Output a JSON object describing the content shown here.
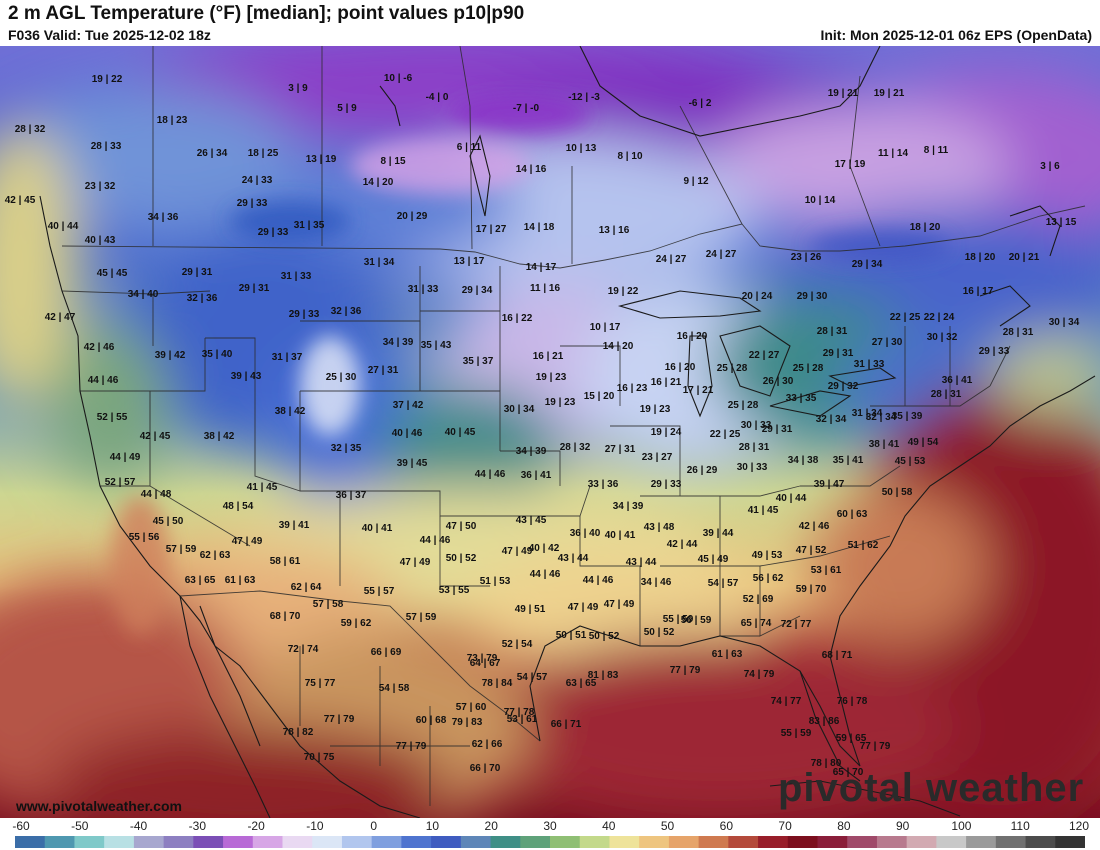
{
  "header": {
    "title": "2 m AGL Temperature (°F) [median]; point values p10|p90",
    "valid": "F036 Valid: Tue 2025-12-02 18z",
    "init": "Init: Mon 2025-12-01 06z EPS (OpenData)"
  },
  "footer": {
    "site_url": "www.pivotalweather.com",
    "brand": "pivotal weather"
  },
  "colorbar": {
    "ticks": [
      "-60",
      "-50",
      "-40",
      "-30",
      "-20",
      "-10",
      "0",
      "10",
      "20",
      "30",
      "40",
      "50",
      "60",
      "70",
      "80",
      "90",
      "100",
      "110",
      "120"
    ],
    "colors": [
      "#3b6ea8",
      "#4f98b0",
      "#7fc9c9",
      "#b8e0e4",
      "#a7a7cf",
      "#8d7fc1",
      "#7b4fb6",
      "#b86ad6",
      "#d7a6e6",
      "#e9d9f2",
      "#dbe6f6",
      "#b1c6ee",
      "#7f9fdf",
      "#4f74cf",
      "#3f5cc0",
      "#5e86b8",
      "#3f8f86",
      "#5fa27a",
      "#8fbf74",
      "#c3d98a",
      "#eee39a",
      "#eec57f",
      "#e6a46a",
      "#cf7a50",
      "#b44a3b",
      "#981e2a",
      "#7c0f1e",
      "#8a1e3a",
      "#a04a6a",
      "#b87a8e",
      "#d2aab2",
      "#c8c8c8",
      "#9a9a9a",
      "#707070",
      "#4c4c4c",
      "#333333"
    ]
  },
  "map": {
    "points": [
      {
        "t": "19|22"
      },
      {
        "t": "28|32"
      },
      {
        "t": "18|23"
      },
      {
        "t": "3|9"
      },
      {
        "t": "10|-6"
      },
      {
        "t": "5|9"
      },
      {
        "t": "-4|0"
      },
      {
        "t": "-7|-0"
      },
      {
        "t": "-12|-3"
      },
      {
        "t": "-6|2"
      },
      {
        "t": "19|21"
      },
      {
        "t": "19|21"
      },
      {
        "t": "28|33"
      },
      {
        "t": "26|34"
      },
      {
        "t": "18|25"
      },
      {
        "t": "13|19"
      },
      {
        "t": "8|15"
      },
      {
        "t": "6|11"
      },
      {
        "t": "10|13"
      },
      {
        "t": "8|10"
      },
      {
        "t": "17|19"
      },
      {
        "t": "11|14"
      },
      {
        "t": "8|11"
      },
      {
        "t": "3|6"
      },
      {
        "t": "23|32"
      },
      {
        "t": "24|33"
      },
      {
        "t": "14|20"
      },
      {
        "t": "14|16"
      },
      {
        "t": "9|12"
      },
      {
        "t": "42|45"
      },
      {
        "t": "29|33"
      },
      {
        "t": "10|14"
      },
      {
        "t": "34|36"
      },
      {
        "t": "20|29"
      },
      {
        "t": "40|44"
      },
      {
        "t": "31|35"
      },
      {
        "t": "17|27"
      },
      {
        "t": "14|18"
      },
      {
        "t": "13|16"
      },
      {
        "t": "18|20"
      },
      {
        "t": "13|15"
      },
      {
        "t": "29|33"
      },
      {
        "t": "40|43"
      },
      {
        "t": "24|27"
      },
      {
        "t": "23|26"
      },
      {
        "t": "29|34"
      },
      {
        "t": "13|17"
      },
      {
        "t": "14|17"
      },
      {
        "t": "24|27"
      },
      {
        "t": "18|20"
      },
      {
        "t": "20|21"
      },
      {
        "t": "29|31"
      },
      {
        "t": "31|34"
      },
      {
        "t": "31|33"
      },
      {
        "t": "45|45"
      },
      {
        "t": "29|31"
      },
      {
        "t": "31|33"
      },
      {
        "t": "29|34"
      },
      {
        "t": "11|16"
      },
      {
        "t": "19|22"
      },
      {
        "t": "20|24"
      },
      {
        "t": "29|30"
      },
      {
        "t": "16|17"
      },
      {
        "t": "34|40"
      },
      {
        "t": "32|36"
      },
      {
        "t": "29|33"
      },
      {
        "t": "32|36"
      },
      {
        "t": "16|22"
      },
      {
        "t": "10|17"
      },
      {
        "t": "22|25"
      },
      {
        "t": "22|24"
      },
      {
        "t": "42|47"
      },
      {
        "t": "28|31"
      },
      {
        "t": "28|31"
      },
      {
        "t": "30|34"
      },
      {
        "t": "34|39"
      },
      {
        "t": "35|43"
      },
      {
        "t": "16|20"
      },
      {
        "t": "14|20"
      },
      {
        "t": "30|32"
      },
      {
        "t": "27|30"
      },
      {
        "t": "42|46"
      },
      {
        "t": "39|42"
      },
      {
        "t": "35|40"
      },
      {
        "t": "31|37"
      },
      {
        "t": "16|21"
      },
      {
        "t": "22|27"
      },
      {
        "t": "29|31"
      },
      {
        "t": "29|33"
      },
      {
        "t": "35|37"
      },
      {
        "t": "25|30"
      },
      {
        "t": "27|31"
      },
      {
        "t": "16|20"
      },
      {
        "t": "25|28"
      },
      {
        "t": "25|28"
      },
      {
        "t": "31|33"
      },
      {
        "t": "44|46"
      },
      {
        "t": "39|43"
      },
      {
        "t": "19|23"
      },
      {
        "t": "16|23"
      },
      {
        "t": "16|21"
      },
      {
        "t": "26|30"
      },
      {
        "t": "29|32"
      },
      {
        "t": "36|41"
      },
      {
        "t": "15|20"
      },
      {
        "t": "17|21"
      },
      {
        "t": "28|31"
      },
      {
        "t": "38|42"
      },
      {
        "t": "37|42"
      },
      {
        "t": "19|23"
      },
      {
        "t": "30|34"
      },
      {
        "t": "19|23"
      },
      {
        "t": "25|28"
      },
      {
        "t": "33|35"
      },
      {
        "t": "32|34"
      },
      {
        "t": "30|33"
      },
      {
        "t": "52|55"
      },
      {
        "t": "31|34"
      },
      {
        "t": "35|39"
      },
      {
        "t": "42|45"
      },
      {
        "t": "38|42"
      },
      {
        "t": "40|46"
      },
      {
        "t": "40|45"
      },
      {
        "t": "19|24"
      },
      {
        "t": "22|25"
      },
      {
        "t": "29|31"
      },
      {
        "t": "38|41"
      },
      {
        "t": "32|35"
      },
      {
        "t": "28|32"
      },
      {
        "t": "27|31"
      },
      {
        "t": "23|27"
      },
      {
        "t": "28|31"
      },
      {
        "t": "32|34"
      },
      {
        "t": "49|54"
      },
      {
        "t": "44|49"
      },
      {
        "t": "39|45"
      },
      {
        "t": "34|39"
      },
      {
        "t": "30|33"
      },
      {
        "t": "34|38"
      },
      {
        "t": "35|41"
      },
      {
        "t": "45|53"
      },
      {
        "t": "52|57"
      },
      {
        "t": "41|45"
      },
      {
        "t": "44|46"
      },
      {
        "t": "36|41"
      },
      {
        "t": "26|29"
      },
      {
        "t": "39|47"
      },
      {
        "t": "44|48"
      },
      {
        "t": "48|54"
      },
      {
        "t": "36|37"
      },
      {
        "t": "33|36"
      },
      {
        "t": "29|33"
      },
      {
        "t": "40|44"
      },
      {
        "t": "50|58"
      },
      {
        "t": "45|50"
      },
      {
        "t": "39|41"
      },
      {
        "t": "40|41"
      },
      {
        "t": "47|50"
      },
      {
        "t": "43|45"
      },
      {
        "t": "34|39"
      },
      {
        "t": "41|45"
      },
      {
        "t": "42|46"
      },
      {
        "t": "60|63"
      },
      {
        "t": "55|56"
      },
      {
        "t": "47|49"
      },
      {
        "t": "44|46"
      },
      {
        "t": "40|42"
      },
      {
        "t": "36|40"
      },
      {
        "t": "43|48"
      },
      {
        "t": "57|59"
      },
      {
        "t": "62|63"
      },
      {
        "t": "58|61"
      },
      {
        "t": "47|49"
      },
      {
        "t": "50|52"
      },
      {
        "t": "47|49"
      },
      {
        "t": "40|41"
      },
      {
        "t": "42|44"
      },
      {
        "t": "39|44"
      },
      {
        "t": "47|52"
      },
      {
        "t": "51|62"
      },
      {
        "t": "63|65"
      },
      {
        "t": "61|63"
      },
      {
        "t": "62|64"
      },
      {
        "t": "43|44"
      },
      {
        "t": "43|44"
      },
      {
        "t": "45|49"
      },
      {
        "t": "49|53"
      },
      {
        "t": "53|61"
      },
      {
        "t": "55|57"
      },
      {
        "t": "53|55"
      },
      {
        "t": "51|53"
      },
      {
        "t": "44|46"
      },
      {
        "t": "44|46"
      },
      {
        "t": "34|46"
      },
      {
        "t": "54|57"
      },
      {
        "t": "56|62"
      },
      {
        "t": "57|58"
      },
      {
        "t": "59|70"
      },
      {
        "t": "68|70"
      },
      {
        "t": "59|62"
      },
      {
        "t": "57|59"
      },
      {
        "t": "49|51"
      },
      {
        "t": "47|49"
      },
      {
        "t": "47|49"
      },
      {
        "t": "52|69"
      },
      {
        "t": "55|59"
      },
      {
        "t": "65|74"
      },
      {
        "t": "72|77"
      },
      {
        "t": "50|51"
      },
      {
        "t": "50|52"
      },
      {
        "t": "50|52"
      },
      {
        "t": "72|74"
      },
      {
        "t": "52|54"
      },
      {
        "t": "66|69"
      },
      {
        "t": "56|59"
      },
      {
        "t": "73|79"
      },
      {
        "t": "68|71"
      },
      {
        "t": "75|77"
      },
      {
        "t": "64|67"
      },
      {
        "t": "54|58"
      },
      {
        "t": "54|57"
      },
      {
        "t": "63|65"
      },
      {
        "t": "61|63"
      },
      {
        "t": "74|79"
      },
      {
        "t": "57|60"
      },
      {
        "t": "78|84"
      },
      {
        "t": "74|77"
      },
      {
        "t": "77|79"
      },
      {
        "t": "81|83"
      },
      {
        "t": "53|61"
      },
      {
        "t": "66|71"
      },
      {
        "t": "55|59"
      },
      {
        "t": "79|83"
      },
      {
        "t": "76|78"
      },
      {
        "t": "83|86"
      },
      {
        "t": "59|65"
      },
      {
        "t": "77|79"
      },
      {
        "t": "77|78"
      },
      {
        "t": "60|68"
      },
      {
        "t": "62|66"
      },
      {
        "t": "78|80"
      },
      {
        "t": "78|82"
      },
      {
        "t": "77|79"
      },
      {
        "t": "66|70"
      },
      {
        "t": "65|70"
      },
      {
        "t": "77|79"
      },
      {
        "t": "70|75"
      }
    ]
  }
}
